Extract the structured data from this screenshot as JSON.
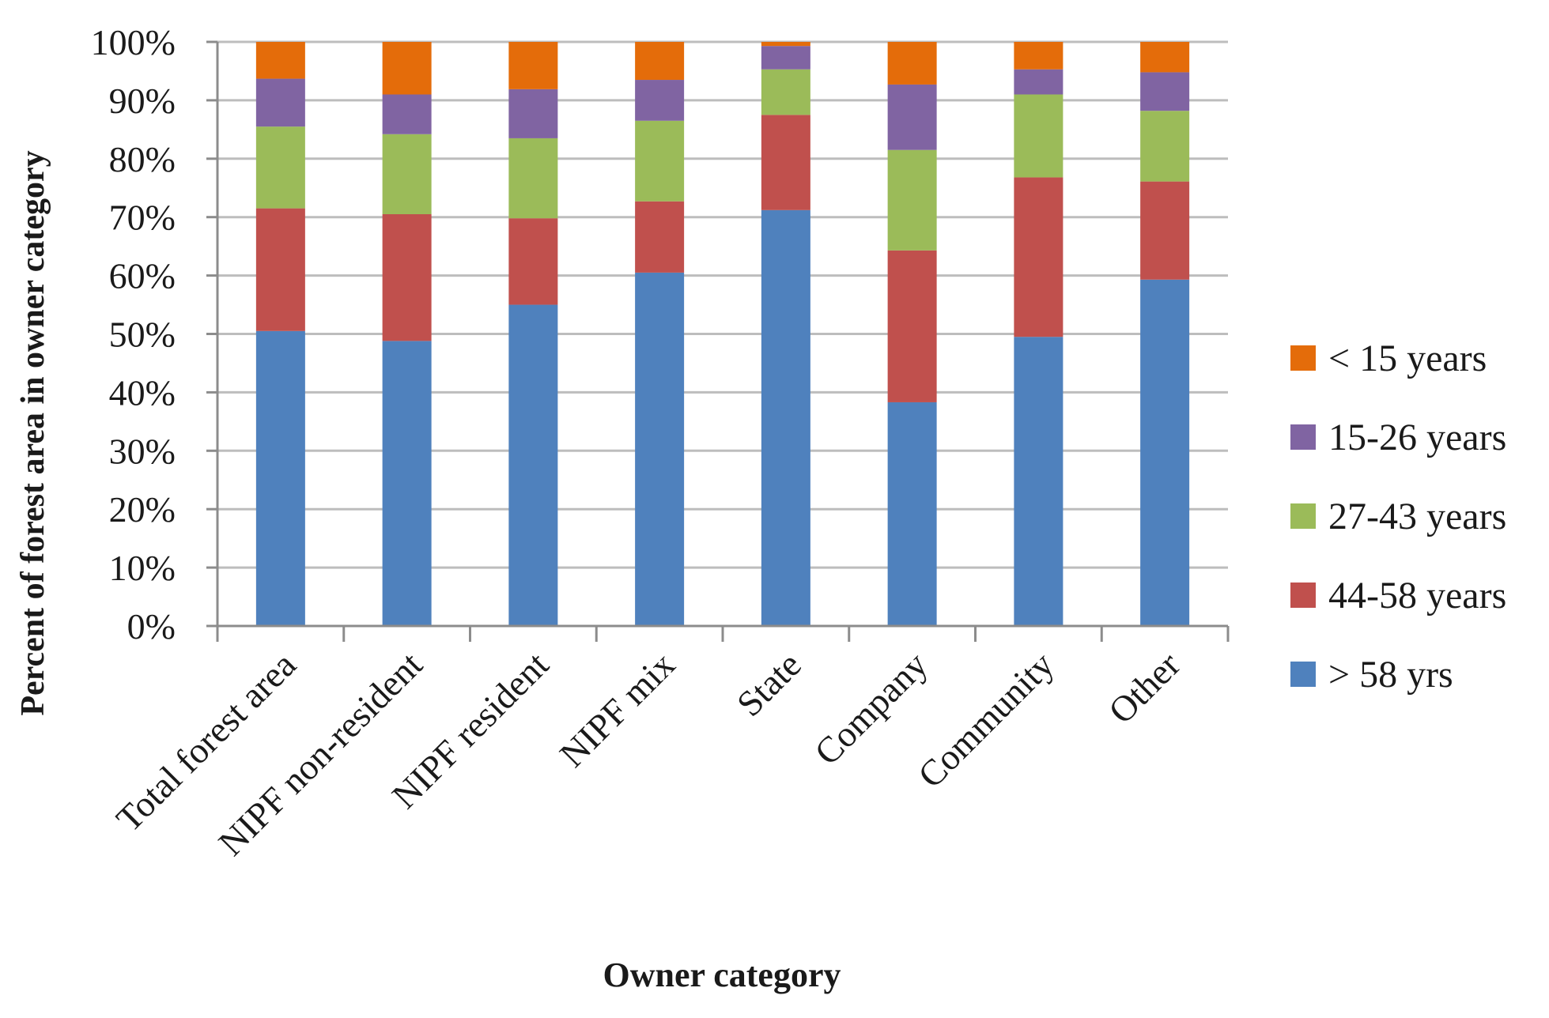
{
  "chart_data": {
    "type": "bar",
    "stacked": true,
    "title": "",
    "xlabel": "Owner category",
    "ylabel": "Percent of forest area in owner category",
    "ylim": [
      0,
      100
    ],
    "ytick_step": 10,
    "ytick_suffix": "%",
    "grid": true,
    "legend_position": "right",
    "categories": [
      "Total forest area",
      "NIPF non-resident",
      "NIPF resident",
      "NIPF mix",
      "State",
      "Company",
      "Community",
      "Other"
    ],
    "series": [
      {
        "name": "> 58 yrs",
        "color": "#4f81bd",
        "values": [
          50.5,
          48.8,
          55.0,
          60.5,
          71.2,
          38.3,
          49.5,
          59.3
        ]
      },
      {
        "name": "44-58 years",
        "color": "#c0504d",
        "values": [
          21.0,
          21.7,
          14.8,
          12.2,
          16.3,
          26.0,
          27.3,
          16.8
        ]
      },
      {
        "name": "27-43 years",
        "color": "#9bbb59",
        "values": [
          14.0,
          13.7,
          13.7,
          13.8,
          7.8,
          17.2,
          14.2,
          12.1
        ]
      },
      {
        "name": "15-26 years",
        "color": "#8064a2",
        "values": [
          8.2,
          6.8,
          8.4,
          7.0,
          4.0,
          11.2,
          4.3,
          6.6
        ]
      },
      {
        "name": "< 15 years",
        "color": "#e46c0a",
        "values": [
          6.3,
          9.0,
          8.1,
          6.5,
          0.7,
          7.3,
          4.7,
          5.2
        ]
      }
    ]
  }
}
